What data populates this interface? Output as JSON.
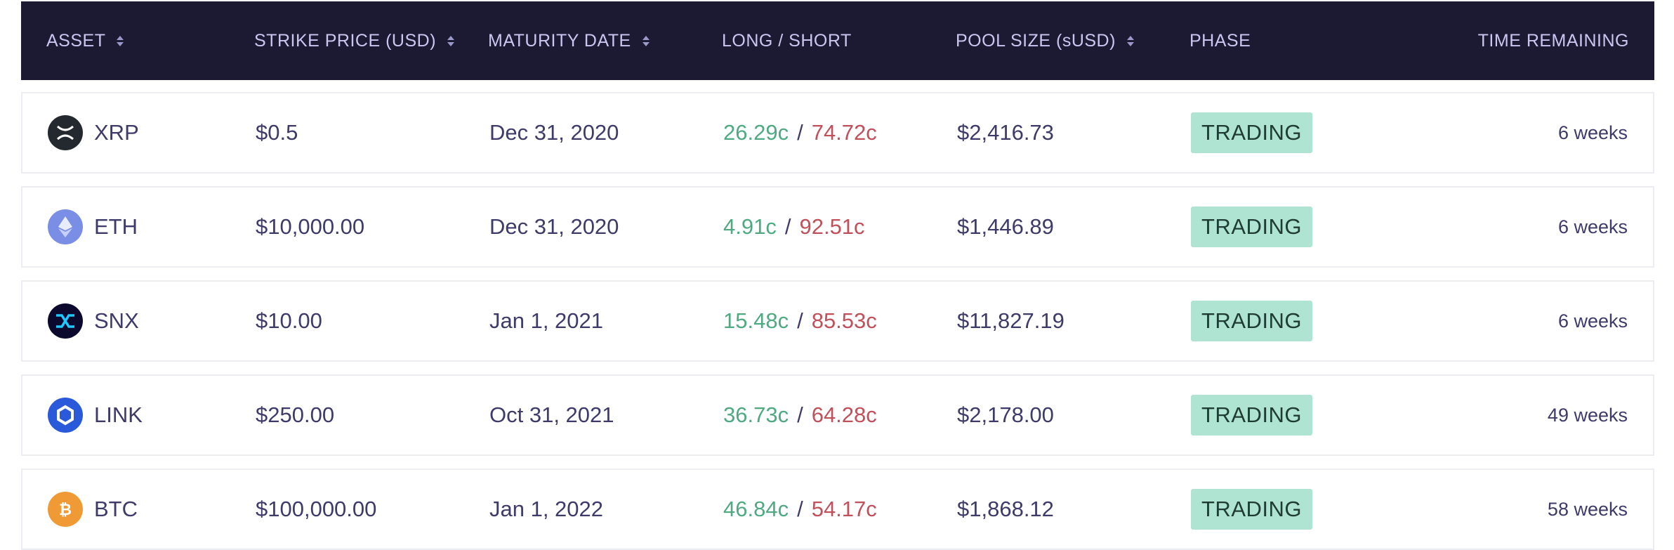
{
  "columns": {
    "asset": "ASSET",
    "strike": "STRIKE PRICE (USD)",
    "maturity": "MATURITY DATE",
    "longshort": "LONG / SHORT",
    "pool": "POOL SIZE (sUSD)",
    "phase": "PHASE",
    "time": "TIME REMAINING"
  },
  "rows": [
    {
      "asset": "XRP",
      "icon": "xrp-icon",
      "strike": "$0.5",
      "maturity": "Dec 31, 2020",
      "long": "26.29c",
      "short": "74.72c",
      "slash": "/",
      "pool": "$2,416.73",
      "phase": "TRADING",
      "time": "6 weeks"
    },
    {
      "asset": "ETH",
      "icon": "eth-icon",
      "strike": "$10,000.00",
      "maturity": "Dec 31, 2020",
      "long": "4.91c",
      "short": "92.51c",
      "slash": "/",
      "pool": "$1,446.89",
      "phase": "TRADING",
      "time": "6 weeks"
    },
    {
      "asset": "SNX",
      "icon": "snx-icon",
      "strike": "$10.00",
      "maturity": "Jan 1, 2021",
      "long": "15.48c",
      "short": "85.53c",
      "slash": "/",
      "pool": "$11,827.19",
      "phase": "TRADING",
      "time": "6 weeks"
    },
    {
      "asset": "LINK",
      "icon": "link-icon",
      "strike": "$250.00",
      "maturity": "Oct 31, 2021",
      "long": "36.73c",
      "short": "64.28c",
      "slash": "/",
      "pool": "$2,178.00",
      "phase": "TRADING",
      "time": "49 weeks"
    },
    {
      "asset": "BTC",
      "icon": "btc-icon",
      "strike": "$100,000.00",
      "maturity": "Jan 1, 2022",
      "long": "46.84c",
      "short": "54.17c",
      "slash": "/",
      "pool": "$1,868.12",
      "phase": "TRADING",
      "time": "58 weeks"
    }
  ],
  "colors": {
    "header_bg": "#1c1a33",
    "long": "#4faa82",
    "short": "#c0505a",
    "badge_bg": "#afe3d2"
  }
}
